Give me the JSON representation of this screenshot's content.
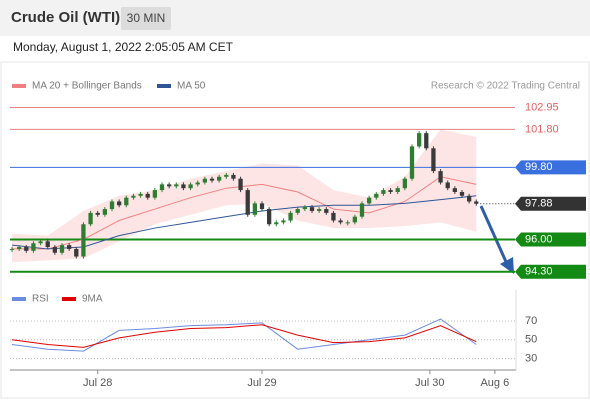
{
  "chart_data": {
    "type": "candlestick",
    "title": "Crude Oil (WTI)",
    "interval": "30 MIN",
    "timestamp": "Monday, August 1, 2022 2:05:05 AM CET",
    "source": "Research © 2022 Trading Central",
    "xlim": [
      0,
      70
    ],
    "xticks": [
      {
        "value": 12,
        "label": "Jul 28"
      },
      {
        "value": 35,
        "label": "Jul 29"
      },
      {
        "value": 58.5,
        "label": "Jul 30"
      },
      {
        "value": 67.6,
        "label": "Aug 6"
      }
    ],
    "ylim": [
      93.6,
      104.4
    ],
    "candles": {
      "up_color": "#2e7d32",
      "down_color": "#3a3a3a",
      "close": [
        95.5,
        95.6,
        95.4,
        95.8,
        95.9,
        95.6,
        95.3,
        95.7,
        95.5,
        95.1,
        96.8,
        97.4,
        97.3,
        97.6,
        98.0,
        97.8,
        98.2,
        98.3,
        98.4,
        98.2,
        98.6,
        98.9,
        98.8,
        98.9,
        98.7,
        98.9,
        99.0,
        99.2,
        99.1,
        99.3,
        99.4,
        99.2,
        98.6,
        97.3,
        97.9,
        97.6,
        96.8,
        96.9,
        97.0,
        97.4,
        97.6,
        97.7,
        97.5,
        97.6,
        97.4,
        97.0,
        96.9,
        96.9,
        97.2,
        97.9,
        98.2,
        98.4,
        98.6,
        98.5,
        98.7,
        99.2,
        100.9,
        101.6,
        100.8,
        99.6,
        99.0,
        98.7,
        98.5,
        98.3,
        98.0,
        97.88
      ]
    },
    "series": [
      {
        "name": "MA 20 + Bollinger Bands",
        "color": "#f08080",
        "band_color": "#fde0e0",
        "values": [
          95.5,
          95.5,
          96.0,
          97.0,
          97.6,
          98.2,
          98.7,
          98.9,
          98.5,
          97.6,
          97.4,
          98.0,
          99.3,
          98.9
        ],
        "upper": [
          96.3,
          96.2,
          97.5,
          98.3,
          98.6,
          99.2,
          99.6,
          100.0,
          99.9,
          98.6,
          98.2,
          99.3,
          101.8,
          101.4
        ],
        "lower": [
          94.8,
          94.9,
          95.0,
          95.9,
          96.8,
          97.3,
          97.8,
          97.9,
          97.0,
          96.6,
          96.6,
          96.7,
          96.9,
          96.4
        ]
      },
      {
        "name": "MA 50",
        "color": "#2f5597",
        "values": [
          95.7,
          95.5,
          95.6,
          96.2,
          96.6,
          96.9,
          97.2,
          97.5,
          97.7,
          97.8,
          97.8,
          97.9,
          98.1,
          98.3
        ]
      }
    ],
    "levels": [
      {
        "value": 102.95,
        "label": "102.95",
        "color": "#e06060",
        "style": "thin"
      },
      {
        "value": 101.8,
        "label": "101.80",
        "color": "#e06060",
        "style": "thin"
      },
      {
        "value": 99.8,
        "label": "99.80",
        "color": "#3a6fe0",
        "style": "box"
      },
      {
        "value": 97.88,
        "label": "97.88",
        "color": "#333333",
        "style": "dotted"
      },
      {
        "value": 96,
        "label": "96.00",
        "color": "#138a13",
        "style": "thick"
      },
      {
        "value": 94.3,
        "label": "94.30",
        "color": "#138a13",
        "style": "thick"
      }
    ],
    "rsi": {
      "ylim": [
        20,
        87
      ],
      "yticks": [
        70,
        50,
        30
      ],
      "series": [
        {
          "name": "RSI",
          "color": "#6b8be0",
          "values": [
            45,
            40,
            38,
            60,
            62,
            65,
            66,
            68,
            40,
            45,
            50,
            55,
            72,
            45
          ]
        },
        {
          "name": "9MA",
          "color": "#e00000",
          "values": [
            50,
            45,
            42,
            52,
            58,
            62,
            63,
            66,
            55,
            47,
            48,
            52,
            65,
            48
          ]
        }
      ]
    }
  }
}
